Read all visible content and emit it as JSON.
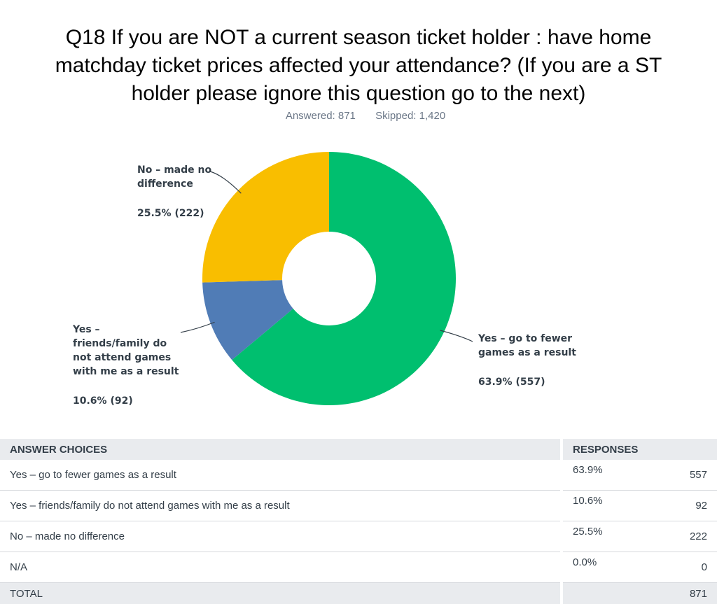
{
  "header": {
    "title": "Q18 If you are NOT a current season ticket holder : have home matchday ticket prices affected your attendance? (If you are a ST holder please ignore this question go to the next)",
    "answered_label": "Answered: 871",
    "skipped_label": "Skipped: 1,420"
  },
  "chart_data": {
    "type": "pie",
    "donut": true,
    "slices": [
      {
        "label_lines": [
          "Yes – go to fewer",
          "games as a result"
        ],
        "value": 63.9,
        "count": 557,
        "value_label": "63.9% (557)",
        "color": "#00bf6f"
      },
      {
        "label_lines": [
          "Yes –",
          "friends/family do",
          "not attend games",
          "with me as a result"
        ],
        "value": 10.6,
        "count": 92,
        "value_label": "10.6% (92)",
        "color": "#507cb6"
      },
      {
        "label_lines": [
          "No – made no",
          "difference"
        ],
        "value": 25.5,
        "count": 222,
        "value_label": "25.5% (222)",
        "color": "#f9be00"
      }
    ]
  },
  "table": {
    "headers": {
      "choices": "ANSWER CHOICES",
      "responses": "RESPONSES"
    },
    "rows": [
      {
        "choice": "Yes – go to fewer games as a result",
        "pct": "63.9%",
        "count": "557"
      },
      {
        "choice": "Yes – friends/family do not attend games with me as a result",
        "pct": "10.6%",
        "count": "92"
      },
      {
        "choice": "No – made no difference",
        "pct": "25.5%",
        "count": "222"
      },
      {
        "choice": "N/A",
        "pct": "0.0%",
        "count": "0"
      }
    ],
    "total": {
      "label": "TOTAL",
      "count": "871"
    }
  }
}
